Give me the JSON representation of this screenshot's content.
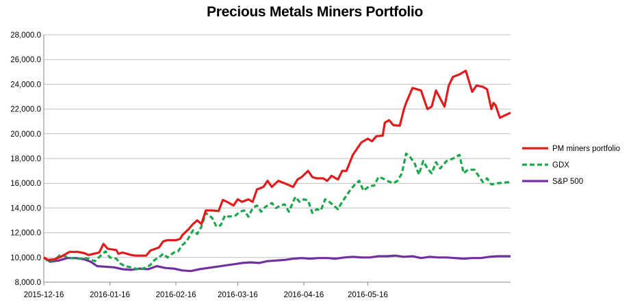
{
  "chart_data": {
    "type": "line",
    "title": "Precious Metals Miners Portfolio",
    "xlabel": "",
    "ylabel": "",
    "ylim": [
      8000,
      28000
    ],
    "y_ticks": [
      "8,000.0",
      "10,000.0",
      "12,000.0",
      "14,000.0",
      "16,000.0",
      "18,000.0",
      "20,000.0",
      "22,000.0",
      "24,000.0",
      "26,000.0",
      "28,000.0"
    ],
    "y_tick_values": [
      8000,
      10000,
      12000,
      14000,
      16000,
      18000,
      20000,
      22000,
      24000,
      26000,
      28000
    ],
    "x_ticks": [
      "2015-12-16",
      "2016-01-16",
      "2016-02-16",
      "2016-03-16",
      "2016-04-16",
      "2016-05-16"
    ],
    "grid": "horizontal",
    "legend_position": "right",
    "series": [
      {
        "name": "PM miners portfolio",
        "color": "#e31a1c",
        "dash": "solid",
        "points": [
          [
            "2015-12-16",
            10000
          ],
          [
            "2015-12-18",
            9800
          ],
          [
            "2015-12-21",
            9850
          ],
          [
            "2015-12-24",
            10050
          ],
          [
            "2015-12-28",
            10450
          ],
          [
            "2016-01-01",
            10450
          ],
          [
            "2016-01-04",
            10350
          ],
          [
            "2016-01-06",
            10200
          ],
          [
            "2016-01-11",
            10400
          ],
          [
            "2016-01-13",
            11100
          ],
          [
            "2016-01-15",
            10700
          ],
          [
            "2016-01-19",
            10600
          ],
          [
            "2016-01-20",
            10300
          ],
          [
            "2016-01-22",
            10400
          ],
          [
            "2016-01-26",
            10200
          ],
          [
            "2016-01-28",
            10150
          ],
          [
            "2016-02-02",
            10150
          ],
          [
            "2016-02-04",
            10550
          ],
          [
            "2016-02-08",
            10800
          ],
          [
            "2016-02-10",
            11300
          ],
          [
            "2016-02-12",
            11400
          ],
          [
            "2016-02-16",
            11400
          ],
          [
            "2016-02-18",
            11500
          ],
          [
            "2016-02-19",
            11800
          ],
          [
            "2016-02-22",
            12300
          ],
          [
            "2016-02-24",
            12700
          ],
          [
            "2016-02-26",
            13000
          ],
          [
            "2016-02-28",
            12700
          ],
          [
            "2016-03-01",
            13800
          ],
          [
            "2016-03-04",
            13800
          ],
          [
            "2016-03-07",
            13750
          ],
          [
            "2016-03-09",
            14650
          ],
          [
            "2016-03-11",
            14500
          ],
          [
            "2016-03-14",
            14200
          ],
          [
            "2016-03-16",
            14700
          ],
          [
            "2016-03-18",
            14500
          ],
          [
            "2016-03-21",
            14700
          ],
          [
            "2016-03-23",
            14500
          ],
          [
            "2016-03-25",
            15500
          ],
          [
            "2016-03-28",
            15700
          ],
          [
            "2016-03-30",
            16200
          ],
          [
            "2016-04-01",
            15700
          ],
          [
            "2016-04-04",
            16200
          ],
          [
            "2016-04-07",
            16000
          ],
          [
            "2016-04-11",
            15700
          ],
          [
            "2016-04-13",
            16300
          ],
          [
            "2016-04-15",
            16500
          ],
          [
            "2016-04-18",
            17000
          ],
          [
            "2016-04-20",
            16500
          ],
          [
            "2016-04-22",
            16400
          ],
          [
            "2016-04-25",
            16400
          ],
          [
            "2016-04-27",
            16200
          ],
          [
            "2016-04-29",
            16600
          ],
          [
            "2016-05-02",
            16300
          ],
          [
            "2016-05-04",
            17000
          ],
          [
            "2016-05-06",
            17000
          ],
          [
            "2016-05-09",
            18300
          ],
          [
            "2016-05-11",
            18800
          ],
          [
            "2016-05-13",
            19300
          ],
          [
            "2016-05-16",
            19600
          ],
          [
            "2016-05-18",
            19400
          ],
          [
            "2016-05-20",
            19800
          ],
          [
            "2016-05-23",
            19850
          ],
          [
            "2016-05-24",
            20900
          ],
          [
            "2016-05-26",
            21100
          ],
          [
            "2016-05-28",
            20700
          ],
          [
            "2016-05-31",
            20650
          ],
          [
            "2016-06-02",
            22000
          ],
          [
            "2016-06-03",
            22500
          ],
          [
            "2016-06-06",
            23700
          ],
          [
            "2016-06-08",
            23600
          ],
          [
            "2016-06-10",
            23500
          ],
          [
            "2016-06-13",
            22000
          ],
          [
            "2016-06-15",
            22200
          ],
          [
            "2016-06-17",
            23500
          ],
          [
            "2016-06-21",
            22200
          ],
          [
            "2016-06-23",
            23900
          ],
          [
            "2016-06-25",
            24600
          ],
          [
            "2016-06-28",
            24800
          ],
          [
            "2016-07-01",
            25100
          ],
          [
            "2016-07-04",
            23400
          ],
          [
            "2016-07-06",
            23900
          ],
          [
            "2016-07-09",
            23800
          ],
          [
            "2016-07-11",
            23600
          ],
          [
            "2016-07-13",
            22000
          ],
          [
            "2016-07-14",
            22500
          ],
          [
            "2016-07-15",
            22300
          ],
          [
            "2016-07-17",
            21300
          ],
          [
            "2016-07-22",
            21700
          ]
        ]
      },
      {
        "name": "GDX",
        "color": "#1aa64b",
        "dash": "dashed",
        "points": [
          [
            "2015-12-16",
            10000
          ],
          [
            "2015-12-18",
            9700
          ],
          [
            "2015-12-21",
            9800
          ],
          [
            "2015-12-24",
            10250
          ],
          [
            "2015-12-28",
            9950
          ],
          [
            "2016-01-02",
            9900
          ],
          [
            "2016-01-04",
            9950
          ],
          [
            "2016-01-06",
            9900
          ],
          [
            "2016-01-09",
            9700
          ],
          [
            "2016-01-12",
            10200
          ],
          [
            "2016-01-14",
            10500
          ],
          [
            "2016-01-16",
            10000
          ],
          [
            "2016-01-19",
            9900
          ],
          [
            "2016-01-21",
            9500
          ],
          [
            "2016-01-23",
            9300
          ],
          [
            "2016-01-26",
            9200
          ],
          [
            "2016-01-28",
            9100
          ],
          [
            "2016-01-30",
            9000
          ],
          [
            "2016-02-02",
            9200
          ],
          [
            "2016-02-04",
            9400
          ],
          [
            "2016-02-06",
            9800
          ],
          [
            "2016-02-08",
            10000
          ],
          [
            "2016-02-10",
            10300
          ],
          [
            "2016-02-12",
            10000
          ],
          [
            "2016-02-15",
            10400
          ],
          [
            "2016-02-17",
            10500
          ],
          [
            "2016-02-19",
            11000
          ],
          [
            "2016-02-21",
            11300
          ],
          [
            "2016-02-24",
            12200
          ],
          [
            "2016-02-26",
            11900
          ],
          [
            "2016-02-28",
            12500
          ],
          [
            "2016-03-01",
            13600
          ],
          [
            "2016-03-04",
            13200
          ],
          [
            "2016-03-06",
            12500
          ],
          [
            "2016-03-08",
            12600
          ],
          [
            "2016-03-10",
            13400
          ],
          [
            "2016-03-12",
            13300
          ],
          [
            "2016-03-15",
            13400
          ],
          [
            "2016-03-17",
            13700
          ],
          [
            "2016-03-19",
            13800
          ],
          [
            "2016-03-21",
            13300
          ],
          [
            "2016-03-23",
            14000
          ],
          [
            "2016-03-25",
            14200
          ],
          [
            "2016-03-27",
            13700
          ],
          [
            "2016-03-29",
            14100
          ],
          [
            "2016-04-01",
            14400
          ],
          [
            "2016-04-03",
            14000
          ],
          [
            "2016-04-05",
            14200
          ],
          [
            "2016-04-07",
            14300
          ],
          [
            "2016-04-09",
            13700
          ],
          [
            "2016-04-12",
            14900
          ],
          [
            "2016-04-14",
            14500
          ],
          [
            "2016-04-16",
            14700
          ],
          [
            "2016-04-18",
            14600
          ],
          [
            "2016-04-20",
            13600
          ],
          [
            "2016-04-22",
            13900
          ],
          [
            "2016-04-24",
            13800
          ],
          [
            "2016-04-26",
            14700
          ],
          [
            "2016-04-28",
            14500
          ],
          [
            "2016-04-30",
            14200
          ],
          [
            "2016-05-02",
            13900
          ],
          [
            "2016-05-04",
            14500
          ],
          [
            "2016-05-06",
            15000
          ],
          [
            "2016-05-08",
            15500
          ],
          [
            "2016-05-10",
            15900
          ],
          [
            "2016-05-12",
            16200
          ],
          [
            "2016-05-14",
            15400
          ],
          [
            "2016-05-17",
            15800
          ],
          [
            "2016-05-19",
            15800
          ],
          [
            "2016-05-21",
            16500
          ],
          [
            "2016-05-23",
            16400
          ],
          [
            "2016-05-25",
            16200
          ],
          [
            "2016-05-28",
            16000
          ],
          [
            "2016-05-30",
            16200
          ],
          [
            "2016-06-01",
            16800
          ],
          [
            "2016-06-03",
            18400
          ],
          [
            "2016-06-05",
            18100
          ],
          [
            "2016-06-07",
            17600
          ],
          [
            "2016-06-09",
            16700
          ],
          [
            "2016-06-11",
            17800
          ],
          [
            "2016-06-13",
            17200
          ],
          [
            "2016-06-15",
            16800
          ],
          [
            "2016-06-17",
            17700
          ],
          [
            "2016-06-19",
            17200
          ],
          [
            "2016-06-22",
            17800
          ],
          [
            "2016-06-25",
            18000
          ],
          [
            "2016-06-28",
            18300
          ],
          [
            "2016-06-30",
            16800
          ],
          [
            "2016-07-02",
            17100
          ],
          [
            "2016-07-05",
            17100
          ],
          [
            "2016-07-07",
            16600
          ],
          [
            "2016-07-09",
            16100
          ],
          [
            "2016-07-11",
            16400
          ],
          [
            "2016-07-13",
            15900
          ],
          [
            "2016-07-16",
            16000
          ],
          [
            "2016-07-22",
            16100
          ]
        ]
      },
      {
        "name": "S&P 500",
        "color": "#7030a0",
        "dash": "solid",
        "points": [
          [
            "2015-12-16",
            10000
          ],
          [
            "2015-12-19",
            9650
          ],
          [
            "2015-12-23",
            9750
          ],
          [
            "2015-12-27",
            9950
          ],
          [
            "2015-12-31",
            9950
          ],
          [
            "2016-01-04",
            9850
          ],
          [
            "2016-01-07",
            9650
          ],
          [
            "2016-01-10",
            9300
          ],
          [
            "2016-01-14",
            9250
          ],
          [
            "2016-01-18",
            9200
          ],
          [
            "2016-01-22",
            9050
          ],
          [
            "2016-01-26",
            9000
          ],
          [
            "2016-01-30",
            9100
          ],
          [
            "2016-02-03",
            9050
          ],
          [
            "2016-02-07",
            9300
          ],
          [
            "2016-02-11",
            9150
          ],
          [
            "2016-02-15",
            9100
          ],
          [
            "2016-02-19",
            8950
          ],
          [
            "2016-02-23",
            8900
          ],
          [
            "2016-02-27",
            9050
          ],
          [
            "2016-03-02",
            9150
          ],
          [
            "2016-03-06",
            9250
          ],
          [
            "2016-03-10",
            9350
          ],
          [
            "2016-03-14",
            9450
          ],
          [
            "2016-03-18",
            9550
          ],
          [
            "2016-03-22",
            9600
          ],
          [
            "2016-03-26",
            9550
          ],
          [
            "2016-03-30",
            9700
          ],
          [
            "2016-04-03",
            9750
          ],
          [
            "2016-04-07",
            9800
          ],
          [
            "2016-04-11",
            9900
          ],
          [
            "2016-04-15",
            9950
          ],
          [
            "2016-04-19",
            9900
          ],
          [
            "2016-04-23",
            9950
          ],
          [
            "2016-04-27",
            9950
          ],
          [
            "2016-05-01",
            9900
          ],
          [
            "2016-05-05",
            10000
          ],
          [
            "2016-05-09",
            10050
          ],
          [
            "2016-05-13",
            10000
          ],
          [
            "2016-05-17",
            10000
          ],
          [
            "2016-05-21",
            10100
          ],
          [
            "2016-05-25",
            10100
          ],
          [
            "2016-05-29",
            10150
          ],
          [
            "2016-06-02",
            10050
          ],
          [
            "2016-06-06",
            10100
          ],
          [
            "2016-06-10",
            9950
          ],
          [
            "2016-06-14",
            10050
          ],
          [
            "2016-06-18",
            10000
          ],
          [
            "2016-06-22",
            10000
          ],
          [
            "2016-06-26",
            9950
          ],
          [
            "2016-06-30",
            9900
          ],
          [
            "2016-07-04",
            9950
          ],
          [
            "2016-07-08",
            9950
          ],
          [
            "2016-07-12",
            10050
          ],
          [
            "2016-07-16",
            10100
          ],
          [
            "2016-07-22",
            10100
          ]
        ]
      }
    ]
  }
}
